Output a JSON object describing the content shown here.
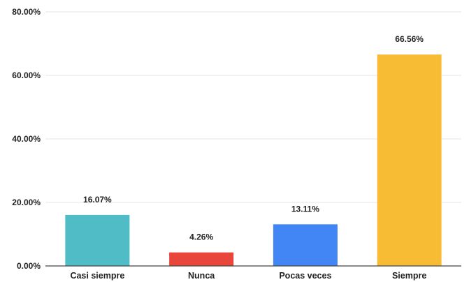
{
  "chart_data": {
    "type": "bar",
    "categories": [
      "Casi siempre",
      "Nunca",
      "Pocas veces",
      "Siempre"
    ],
    "values": [
      16.07,
      4.26,
      13.11,
      66.56
    ],
    "data_labels": [
      "16.07%",
      "4.26%",
      "13.11%",
      "66.56%"
    ],
    "colors": [
      "#4fbcc6",
      "#e8463a",
      "#4285f4",
      "#f8bb34"
    ],
    "yticks": [
      0,
      20,
      40,
      60,
      80
    ],
    "ytick_labels": [
      "0.00%",
      "20.00%",
      "40.00%",
      "60.00%",
      "80.00%"
    ],
    "ylim": [
      0,
      80
    ],
    "title": "",
    "xlabel": "",
    "ylabel": "",
    "grid": true,
    "legend": "none"
  }
}
